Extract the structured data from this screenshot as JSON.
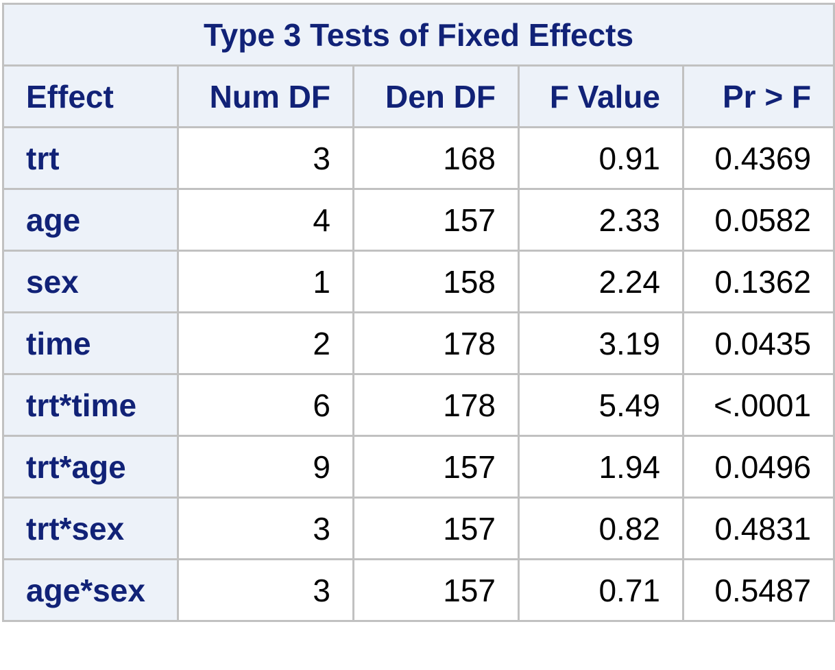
{
  "table": {
    "title": "Type 3 Tests of Fixed Effects",
    "headers": [
      "Effect",
      "Num DF",
      "Den DF",
      "F Value",
      "Pr > F"
    ],
    "rows": [
      {
        "effect": "trt",
        "num_df": "3",
        "den_df": "168",
        "f_value": "0.91",
        "pr_f": "0.4369"
      },
      {
        "effect": "age",
        "num_df": "4",
        "den_df": "157",
        "f_value": "2.33",
        "pr_f": "0.0582"
      },
      {
        "effect": "sex",
        "num_df": "1",
        "den_df": "158",
        "f_value": "2.24",
        "pr_f": "0.1362"
      },
      {
        "effect": "time",
        "num_df": "2",
        "den_df": "178",
        "f_value": "3.19",
        "pr_f": "0.0435"
      },
      {
        "effect": "trt*time",
        "num_df": "6",
        "den_df": "178",
        "f_value": "5.49",
        "pr_f": "<.0001"
      },
      {
        "effect": "trt*age",
        "num_df": "9",
        "den_df": "157",
        "f_value": "1.94",
        "pr_f": "0.0496"
      },
      {
        "effect": "trt*sex",
        "num_df": "3",
        "den_df": "157",
        "f_value": "0.82",
        "pr_f": "0.4831"
      },
      {
        "effect": "age*sex",
        "num_df": "3",
        "den_df": "157",
        "f_value": "0.71",
        "pr_f": "0.5487"
      }
    ]
  },
  "colors": {
    "header_bg": "#edf2f9",
    "header_text": "#112277",
    "border": "#c1c1c1",
    "cell_bg": "#ffffff",
    "cell_text": "#000000"
  }
}
